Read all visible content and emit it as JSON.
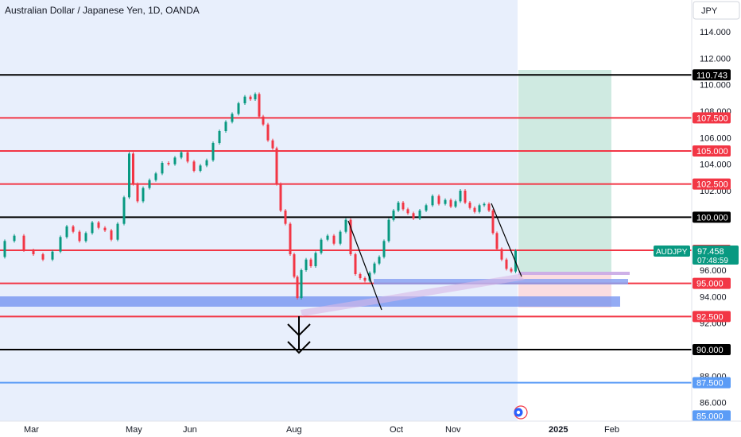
{
  "window": {
    "title": "Australian Dollar / Japanese Yen, 1D, OANDA"
  },
  "chart_data": {
    "type": "line",
    "title": "Australian Dollar / Japanese Yen, 1D, OANDA",
    "currency": "JPY",
    "symbol": "AUDJPY",
    "last_price": "97.458",
    "countdown": "07:48:59",
    "ylim": [
      84.6,
      116.4
    ],
    "y_ticks": [
      "114.000",
      "112.000",
      "110.000",
      "108.000",
      "106.000",
      "104.000",
      "102.000",
      "96.000",
      "94.000",
      "92.000",
      "88.000",
      "86.000"
    ],
    "x_ticks": [
      "Mar",
      "May",
      "Jun",
      "Aug",
      "Oct",
      "Nov",
      "2025",
      "Feb"
    ],
    "price_path": [
      [
        0,
        97.0
      ],
      [
        12,
        98.2
      ],
      [
        24,
        98.6
      ],
      [
        36,
        97.5
      ],
      [
        48,
        97.2
      ],
      [
        60,
        96.8
      ],
      [
        72,
        97.4
      ],
      [
        80,
        98.5
      ],
      [
        88,
        99.3
      ],
      [
        96,
        98.9
      ],
      [
        104,
        98.2
      ],
      [
        112,
        98.8
      ],
      [
        120,
        99.6
      ],
      [
        128,
        99.2
      ],
      [
        136,
        99.0
      ],
      [
        144,
        98.3
      ],
      [
        152,
        99.5
      ],
      [
        160,
        101.5
      ],
      [
        165,
        104.8
      ],
      [
        170,
        102.5
      ],
      [
        176,
        101.2
      ],
      [
        184,
        102.2
      ],
      [
        192,
        102.8
      ],
      [
        200,
        103.3
      ],
      [
        208,
        104.1
      ],
      [
        216,
        104.0
      ],
      [
        224,
        104.5
      ],
      [
        232,
        104.9
      ],
      [
        240,
        104.2
      ],
      [
        248,
        103.5
      ],
      [
        256,
        103.9
      ],
      [
        264,
        104.3
      ],
      [
        272,
        105.6
      ],
      [
        280,
        106.5
      ],
      [
        288,
        107.2
      ],
      [
        296,
        107.8
      ],
      [
        304,
        108.6
      ],
      [
        312,
        109.1
      ],
      [
        318,
        108.9
      ],
      [
        324,
        109.3
      ],
      [
        328,
        107.6
      ],
      [
        334,
        107.0
      ],
      [
        340,
        105.8
      ],
      [
        346,
        105.2
      ],
      [
        350,
        102.5
      ],
      [
        356,
        100.5
      ],
      [
        362,
        99.5
      ],
      [
        368,
        97.2
      ],
      [
        372,
        95.5
      ],
      [
        376,
        93.9
      ],
      [
        382,
        96.0
      ],
      [
        388,
        96.8
      ],
      [
        394,
        96.3
      ],
      [
        400,
        97.3
      ],
      [
        408,
        98.3
      ],
      [
        416,
        98.6
      ],
      [
        424,
        98.0
      ],
      [
        432,
        98.9
      ],
      [
        438,
        99.8
      ],
      [
        444,
        97.2
      ],
      [
        450,
        95.7
      ],
      [
        456,
        95.4
      ],
      [
        462,
        95.2
      ],
      [
        468,
        95.8
      ],
      [
        474,
        96.5
      ],
      [
        480,
        97.0
      ],
      [
        486,
        98.2
      ],
      [
        492,
        99.8
      ],
      [
        498,
        100.5
      ],
      [
        504,
        101.1
      ],
      [
        510,
        100.6
      ],
      [
        516,
        100.3
      ],
      [
        524,
        99.9
      ],
      [
        532,
        100.5
      ],
      [
        540,
        100.9
      ],
      [
        548,
        101.6
      ],
      [
        556,
        101.0
      ],
      [
        564,
        101.3
      ],
      [
        570,
        100.8
      ],
      [
        576,
        101.2
      ],
      [
        582,
        102.0
      ],
      [
        588,
        101.1
      ],
      [
        594,
        100.7
      ],
      [
        600,
        100.4
      ],
      [
        606,
        100.9
      ],
      [
        612,
        101.0
      ],
      [
        618,
        100.5
      ],
      [
        622,
        98.8
      ],
      [
        628,
        97.6
      ],
      [
        634,
        96.8
      ],
      [
        640,
        96.1
      ],
      [
        646,
        95.9
      ],
      [
        651,
        97.46
      ]
    ],
    "levels": [
      {
        "price": 110.743,
        "label": "110.743",
        "color": "#000000",
        "width": 2
      },
      {
        "price": 107.5,
        "label": "107.500",
        "color": "#f23645",
        "width": 2
      },
      {
        "price": 105.0,
        "label": "105.000",
        "color": "#f23645",
        "width": 2
      },
      {
        "price": 102.5,
        "label": "102.500",
        "color": "#f23645",
        "width": 2
      },
      {
        "price": 100.0,
        "label": "100.000",
        "color": "#000000",
        "width": 2
      },
      {
        "price": 97.5,
        "label": "97.500",
        "color": "#f23645",
        "width": 2
      },
      {
        "price": 95.0,
        "label": "95.000",
        "color": "#f23645",
        "width": 2
      },
      {
        "price": 92.5,
        "label": "92.500",
        "color": "#f23645",
        "width": 2
      },
      {
        "price": 90.0,
        "label": "90.000",
        "color": "#000000",
        "width": 2
      },
      {
        "price": 87.5,
        "label": "87.500",
        "color": "#5b9cf6",
        "width": 2
      },
      {
        "price": 85.0,
        "label": "85.000",
        "color": "#5b9cf6",
        "width": 0
      }
    ],
    "colors": {
      "up": "#089981",
      "down": "#f23645",
      "accent": "#2962ff",
      "highlight": "#e8effc"
    }
  }
}
